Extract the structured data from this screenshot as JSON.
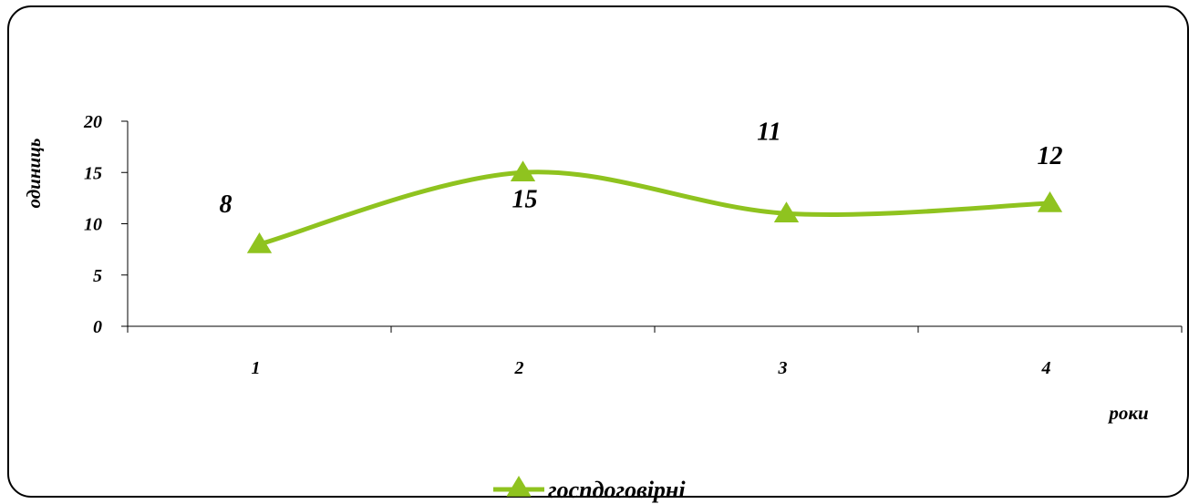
{
  "chart_data": {
    "type": "line",
    "smooth": true,
    "categories": [
      "1",
      "2",
      "3",
      "4"
    ],
    "series": [
      {
        "name": "госпдоговірні",
        "values": [
          8,
          15,
          11,
          12
        ],
        "color": "#8fc31f",
        "marker": "triangle"
      }
    ],
    "data_labels": [
      "8",
      "15",
      "11",
      "12"
    ],
    "xlabel": "роки",
    "ylabel": "одиниць",
    "ylim": [
      0,
      20
    ],
    "yticks": [
      "0",
      "5",
      "10",
      "15",
      "20"
    ],
    "grid": false,
    "legend_position": "bottom"
  }
}
